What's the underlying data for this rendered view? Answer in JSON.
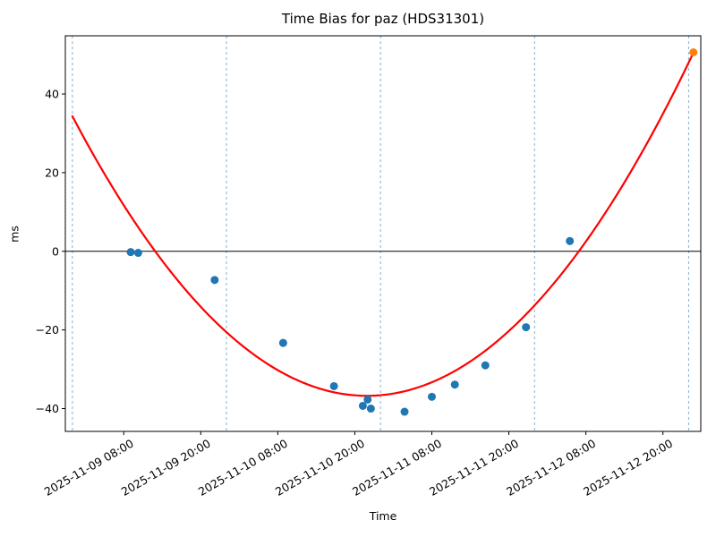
{
  "chart_data": {
    "type": "scatter",
    "title": "Time Bias for paz (HDS31301)",
    "xlabel": "Time",
    "ylabel": "ms",
    "background": "#ffffff",
    "grid": "vertical-day-lines-only",
    "legend": "none",
    "x_axis": {
      "epoch": "2025-11-09 00:00",
      "range_hours": [
        -1.1,
        97.9
      ],
      "tick_rotation_deg": 30,
      "ticks": [
        {
          "t": 8,
          "label": "2025-11-09 08:00"
        },
        {
          "t": 20,
          "label": "2025-11-09 20:00"
        },
        {
          "t": 32,
          "label": "2025-11-10 08:00"
        },
        {
          "t": 44,
          "label": "2025-11-10 20:00"
        },
        {
          "t": 56,
          "label": "2025-11-11 08:00"
        },
        {
          "t": 68,
          "label": "2025-11-11 20:00"
        },
        {
          "t": 80,
          "label": "2025-11-12 08:00"
        },
        {
          "t": 92,
          "label": "2025-11-12 20:00"
        }
      ],
      "day_gridlines_hours": [
        0,
        24,
        48,
        72,
        96
      ],
      "gridline_color": "#74a9cf",
      "gridline_style": "dashed"
    },
    "y_axis": {
      "range": [
        -45.8,
        54.8
      ],
      "ticks": [
        {
          "v": 40,
          "label": "40"
        },
        {
          "v": 20,
          "label": "20"
        },
        {
          "v": 0,
          "label": "0"
        },
        {
          "v": -20,
          "label": "−20"
        },
        {
          "v": -40,
          "label": "−40"
        }
      ],
      "zero_line": true,
      "zero_line_color": "#000000"
    },
    "series": [
      {
        "name": "bias-measurements",
        "color": "#1f77b4",
        "marker": "circle",
        "points": [
          {
            "time": "2025-11-09 09:05",
            "ms": -0.2
          },
          {
            "time": "2025-11-09 10:15",
            "ms": -0.4
          },
          {
            "time": "2025-11-09 22:10",
            "ms": -7.3
          },
          {
            "time": "2025-11-10 08:50",
            "ms": -23.3
          },
          {
            "time": "2025-11-10 16:45",
            "ms": -34.3
          },
          {
            "time": "2025-11-10 21:15",
            "ms": -39.3
          },
          {
            "time": "2025-11-10 22:00",
            "ms": -37.7
          },
          {
            "time": "2025-11-10 22:30",
            "ms": -40.0
          },
          {
            "time": "2025-11-11 03:45",
            "ms": -40.8
          },
          {
            "time": "2025-11-11 08:00",
            "ms": -37.0
          },
          {
            "time": "2025-11-11 11:35",
            "ms": -33.9
          },
          {
            "time": "2025-11-11 16:20",
            "ms": -29.0
          },
          {
            "time": "2025-11-11 22:40",
            "ms": -19.3
          },
          {
            "time": "2025-11-12 05:30",
            "ms": 2.6
          }
        ]
      },
      {
        "name": "latest-measurement",
        "color": "#ff7f0e",
        "marker": "circle",
        "points": [
          {
            "time": "2025-11-13 00:45",
            "ms": 50.6
          }
        ]
      }
    ],
    "fit_curve": {
      "name": "quadratic-fit",
      "color": "#ff0000",
      "model": "ms = a * (t_hours - t_vertex)^2 + min_ms",
      "a": 0.03374,
      "t_vertex_hours": 45.9,
      "min_ms": -36.75,
      "t_start_hours": 0,
      "t_end_hours": 96.75
    }
  }
}
